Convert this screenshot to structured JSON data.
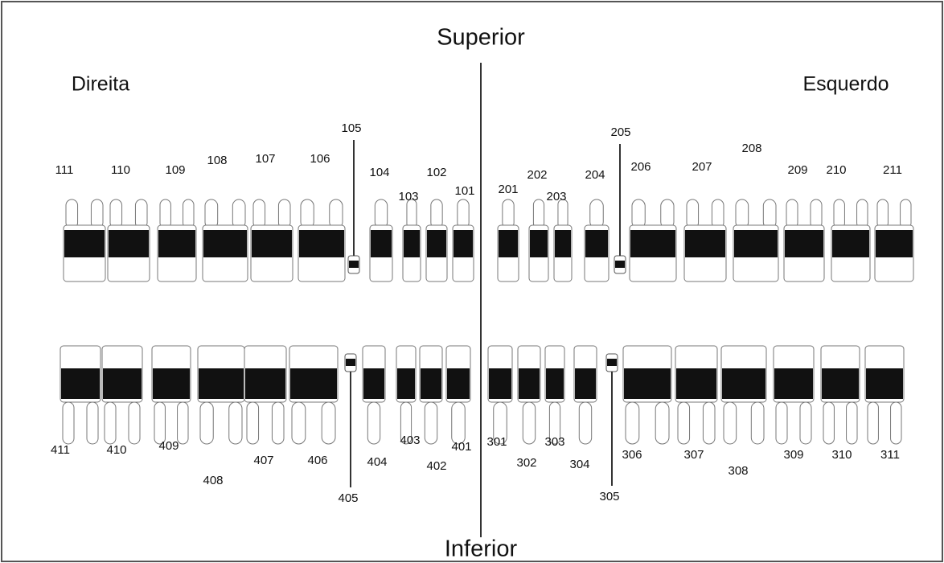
{
  "title_top": "Superior",
  "title_bottom": "Inferior",
  "side_left": "Direita",
  "side_right": "Esquerdo",
  "upper_teeth": [
    "111",
    "110",
    "109",
    "108",
    "107",
    "106",
    "105",
    "104",
    "103",
    "102",
    "101",
    "201",
    "202",
    "203",
    "204",
    "205",
    "206",
    "207",
    "208",
    "209",
    "210",
    "211"
  ],
  "lower_teeth": [
    "411",
    "410",
    "409",
    "408",
    "407",
    "406",
    "405",
    "404",
    "403",
    "402",
    "401",
    "301",
    "302",
    "303",
    "304",
    "305",
    "306",
    "307",
    "308",
    "309",
    "310",
    "311"
  ]
}
